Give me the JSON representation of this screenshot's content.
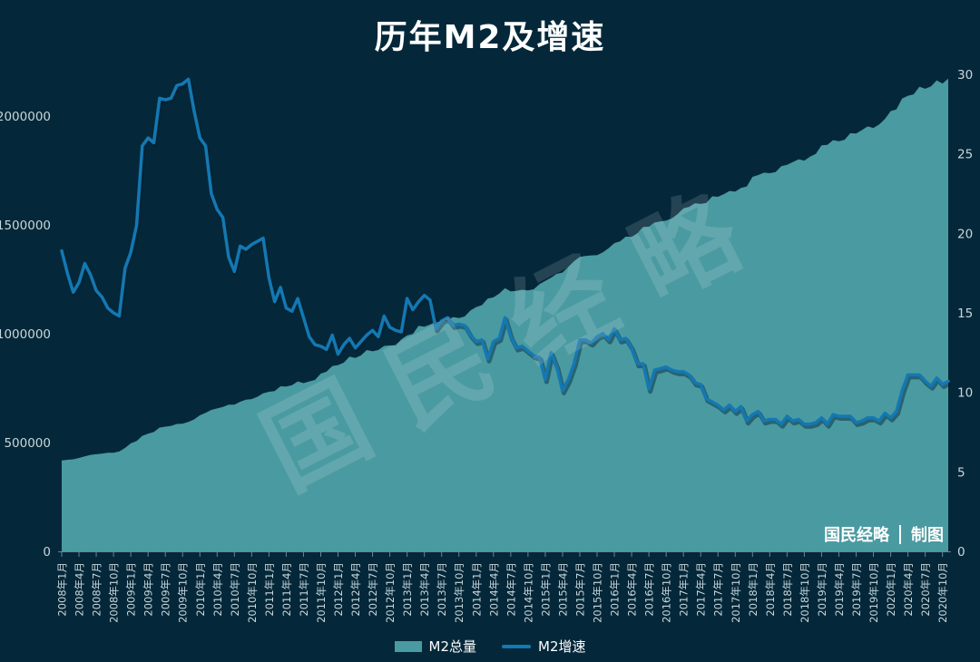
{
  "title": "历年M2及增速",
  "watermark": "国民经略",
  "credit": {
    "left": "国民经略",
    "right": "制图"
  },
  "legend": [
    {
      "label": "M2总量",
      "type": "area"
    },
    {
      "label": "M2增速",
      "type": "line"
    }
  ],
  "colors": {
    "background": "#04283a",
    "area_fill": "#4a9aa1",
    "line_stroke": "#1478b2",
    "line_shadow": "rgba(2,32,50,0.45)",
    "axis_text": "#c9d6da",
    "tick_mark": "rgba(190,210,218,0.55)",
    "title_text": "#ffffff"
  },
  "chart_data": {
    "type": "area+line combo",
    "title": "历年M2及增速",
    "x_start_month": "2008年1月",
    "x_end_month": "2020年11月",
    "x_tick_step_months": 3,
    "x_tick_labels": [
      "2008年1月",
      "2008年4月",
      "2008年7月",
      "2008年10月",
      "2009年1月",
      "2009年4月",
      "2009年7月",
      "2009年10月",
      "2010年1月",
      "2010年4月",
      "2010年7月",
      "2010年10月",
      "2011年1月",
      "2011年4月",
      "2011年7月",
      "2011年10月",
      "2012年1月",
      "2012年4月",
      "2012年7月",
      "2012年10月",
      "2013年1月",
      "2013年4月",
      "2013年7月",
      "2013年10月",
      "2014年1月",
      "2014年4月",
      "2014年7月",
      "2014年10月",
      "2015年1月",
      "2015年4月",
      "2015年7月",
      "2015年10月",
      "2016年1月",
      "2016年4月",
      "2016年7月",
      "2016年10月",
      "2017年1月",
      "2017年4月",
      "2017年7月",
      "2017年10月",
      "2018年1月",
      "2018年4月",
      "2018年7月",
      "2018年10月",
      "2019年1月",
      "2019年4月",
      "2019年7月",
      "2019年10月",
      "2020年1月",
      "2020年4月",
      "2020年7月",
      "2020年10月"
    ],
    "left_axis": {
      "ticks": [
        0,
        500000,
        1000000,
        1500000,
        2000000
      ],
      "ylim": [
        0,
        2191667
      ]
    },
    "right_axis": {
      "ticks": [
        0,
        5,
        10,
        15,
        20,
        25,
        30
      ],
      "ylim": [
        0,
        30
      ]
    },
    "legend_position": "bottom-center",
    "grid": false,
    "series": [
      {
        "name": "M2总量",
        "type": "area",
        "axis": "left",
        "unit": "亿元",
        "values": [
          417846,
          421038,
          423055,
          429314,
          436402,
          443141,
          446362,
          448847,
          452899,
          453133,
          458645,
          475167,
          496135,
          506708,
          530627,
          540481,
          548264,
          568916,
          573103,
          576699,
          585405,
          586643,
          594605,
          606225,
          625609,
          636072,
          649947,
          656561,
          663351,
          673921,
          674051,
          687507,
          696471,
          699776,
          710339,
          725852,
          733171,
          736130,
          758131,
          757384,
          763409,
          780821,
          773103,
          780852,
          787406,
          816829,
          825493,
          851591,
          855898,
          867063,
          894990,
          888727,
          900528,
          925050,
          919086,
          925008,
          943716,
          946085,
          945684,
          974149,
          992115,
          998632,
          1036135,
          1032588,
          1042024,
          1054403,
          1052399,
          1061272,
          1076498,
          1072070,
          1079094,
          1106525,
          1122446,
          1131079,
          1161572,
          1166972,
          1184046,
          1209646,
          1194204,
          1196661,
          1202093,
          1199225,
          1204229,
          1228375,
          1242700,
          1257400,
          1275300,
          1280800,
          1307400,
          1333400,
          1353200,
          1356900,
          1359800,
          1361000,
          1374000,
          1392300,
          1416300,
          1424600,
          1446200,
          1445200,
          1461700,
          1490500,
          1491600,
          1511000,
          1516400,
          1519500,
          1530400,
          1550100,
          1576000,
          1582900,
          1599600,
          1596300,
          1601400,
          1631300,
          1629000,
          1641400,
          1655700,
          1653400,
          1670000,
          1676800,
          1720800,
          1729100,
          1739900,
          1737700,
          1743100,
          1770200,
          1776200,
          1788700,
          1801700,
          1795600,
          1813200,
          1826700,
          1865900,
          1867400,
          1889400,
          1884700,
          1891200,
          1921400,
          1919400,
          1935500,
          1952300,
          1945600,
          1961400,
          1986500,
          2023100,
          2030800,
          2080900,
          2093500,
          2100200,
          2134900,
          2125500,
          2136800,
          2164100,
          2149700,
          2172000
        ]
      },
      {
        "name": "M2增速",
        "type": "line",
        "axis": "right",
        "unit": "%",
        "values": [
          18.9,
          17.5,
          16.3,
          16.9,
          18.1,
          17.4,
          16.4,
          16.0,
          15.3,
          15.0,
          14.8,
          17.8,
          18.8,
          20.5,
          25.5,
          26.0,
          25.7,
          28.5,
          28.4,
          28.5,
          29.3,
          29.4,
          29.7,
          27.7,
          26.0,
          25.5,
          22.5,
          21.5,
          21.0,
          18.5,
          17.6,
          19.2,
          19.0,
          19.3,
          19.5,
          19.7,
          17.2,
          15.7,
          16.6,
          15.3,
          15.1,
          15.9,
          14.7,
          13.5,
          13.0,
          12.9,
          12.7,
          13.6,
          12.4,
          13.0,
          13.4,
          12.8,
          13.2,
          13.6,
          13.9,
          13.5,
          14.8,
          14.1,
          13.9,
          13.8,
          15.9,
          15.2,
          15.7,
          16.1,
          15.8,
          14.0,
          14.5,
          14.7,
          14.2,
          14.3,
          14.2,
          13.6,
          13.2,
          13.3,
          12.1,
          13.2,
          13.4,
          14.7,
          13.5,
          12.8,
          12.9,
          12.6,
          12.3,
          12.2,
          10.8,
          12.5,
          11.6,
          10.1,
          10.8,
          11.8,
          13.3,
          13.3,
          13.1,
          13.5,
          13.7,
          13.3,
          14.0,
          13.3,
          13.4,
          12.8,
          11.8,
          11.8,
          10.2,
          11.4,
          11.5,
          11.6,
          11.4,
          11.3,
          11.3,
          11.1,
          10.6,
          10.5,
          9.6,
          9.4,
          9.2,
          8.9,
          9.2,
          8.8,
          9.1,
          8.2,
          8.6,
          8.8,
          8.2,
          8.3,
          8.3,
          8.0,
          8.5,
          8.2,
          8.3,
          8.0,
          8.0,
          8.1,
          8.4,
          8.0,
          8.6,
          8.5,
          8.5,
          8.5,
          8.1,
          8.2,
          8.4,
          8.4,
          8.2,
          8.7,
          8.4,
          8.8,
          10.1,
          11.1,
          11.1,
          11.1,
          10.7,
          10.4,
          10.9,
          10.5,
          10.7
        ]
      }
    ]
  }
}
